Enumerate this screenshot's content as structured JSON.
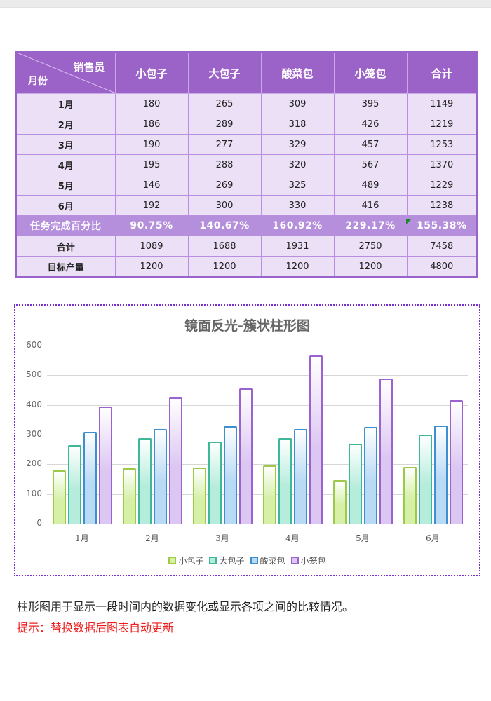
{
  "table": {
    "corner": {
      "top_right": "销售员",
      "bottom_left": "月份"
    },
    "headers": [
      "小包子",
      "大包子",
      "酸菜包",
      "小笼包",
      "合计"
    ],
    "rows": [
      {
        "label": "1月",
        "values": [
          "180",
          "265",
          "309",
          "395",
          "1149"
        ]
      },
      {
        "label": "2月",
        "values": [
          "186",
          "289",
          "318",
          "426",
          "1219"
        ]
      },
      {
        "label": "3月",
        "values": [
          "190",
          "277",
          "329",
          "457",
          "1253"
        ]
      },
      {
        "label": "4月",
        "values": [
          "195",
          "288",
          "320",
          "567",
          "1370"
        ]
      },
      {
        "label": "5月",
        "values": [
          "146",
          "269",
          "325",
          "489",
          "1229"
        ]
      },
      {
        "label": "6月",
        "values": [
          "192",
          "300",
          "330",
          "416",
          "1238"
        ]
      }
    ],
    "percent_row": {
      "label": "任务完成百分比",
      "values": [
        "90.75%",
        "140.67%",
        "160.92%",
        "229.17%",
        "155.38%"
      ]
    },
    "total_row": {
      "label": "合计",
      "values": [
        "1089",
        "1688",
        "1931",
        "2750",
        "7458"
      ]
    },
    "target_row": {
      "label": "目标产量",
      "values": [
        "1200",
        "1200",
        "1200",
        "1200",
        "4800"
      ]
    },
    "colors": {
      "header_bg": "#9b62c8",
      "cell_bg": "#ebe0f6",
      "percent_bg": "#b58fdb",
      "border": "#b88ee0"
    }
  },
  "chart_data": {
    "type": "bar",
    "title": "镜面反光-簇状柱形图",
    "categories": [
      "1月",
      "2月",
      "3月",
      "4月",
      "5月",
      "6月"
    ],
    "series": [
      {
        "name": "小包子",
        "values": [
          180,
          186,
          190,
          195,
          146,
          192
        ],
        "color": "#d6f0a8",
        "border": "#9cc94a"
      },
      {
        "name": "大包子",
        "values": [
          265,
          289,
          277,
          288,
          269,
          300
        ],
        "color": "#b6ecdc",
        "border": "#3fb89a"
      },
      {
        "name": "酸菜包",
        "values": [
          309,
          318,
          329,
          320,
          325,
          330
        ],
        "color": "#b9daf5",
        "border": "#3d8fd0"
      },
      {
        "name": "小笼包",
        "values": [
          395,
          426,
          457,
          567,
          489,
          416
        ],
        "color": "#dcc6f2",
        "border": "#9b63d0"
      }
    ],
    "xlabel": "",
    "ylabel": "",
    "yticks": [
      0,
      100,
      200,
      300,
      400,
      500,
      600
    ],
    "ylim": [
      0,
      600
    ],
    "grid": true,
    "legend_position": "bottom"
  },
  "footer": {
    "description": "柱形图用于显示一段时间内的数据变化或显示各项之间的比较情况。",
    "tip": "提示：替换数据后图表自动更新"
  }
}
